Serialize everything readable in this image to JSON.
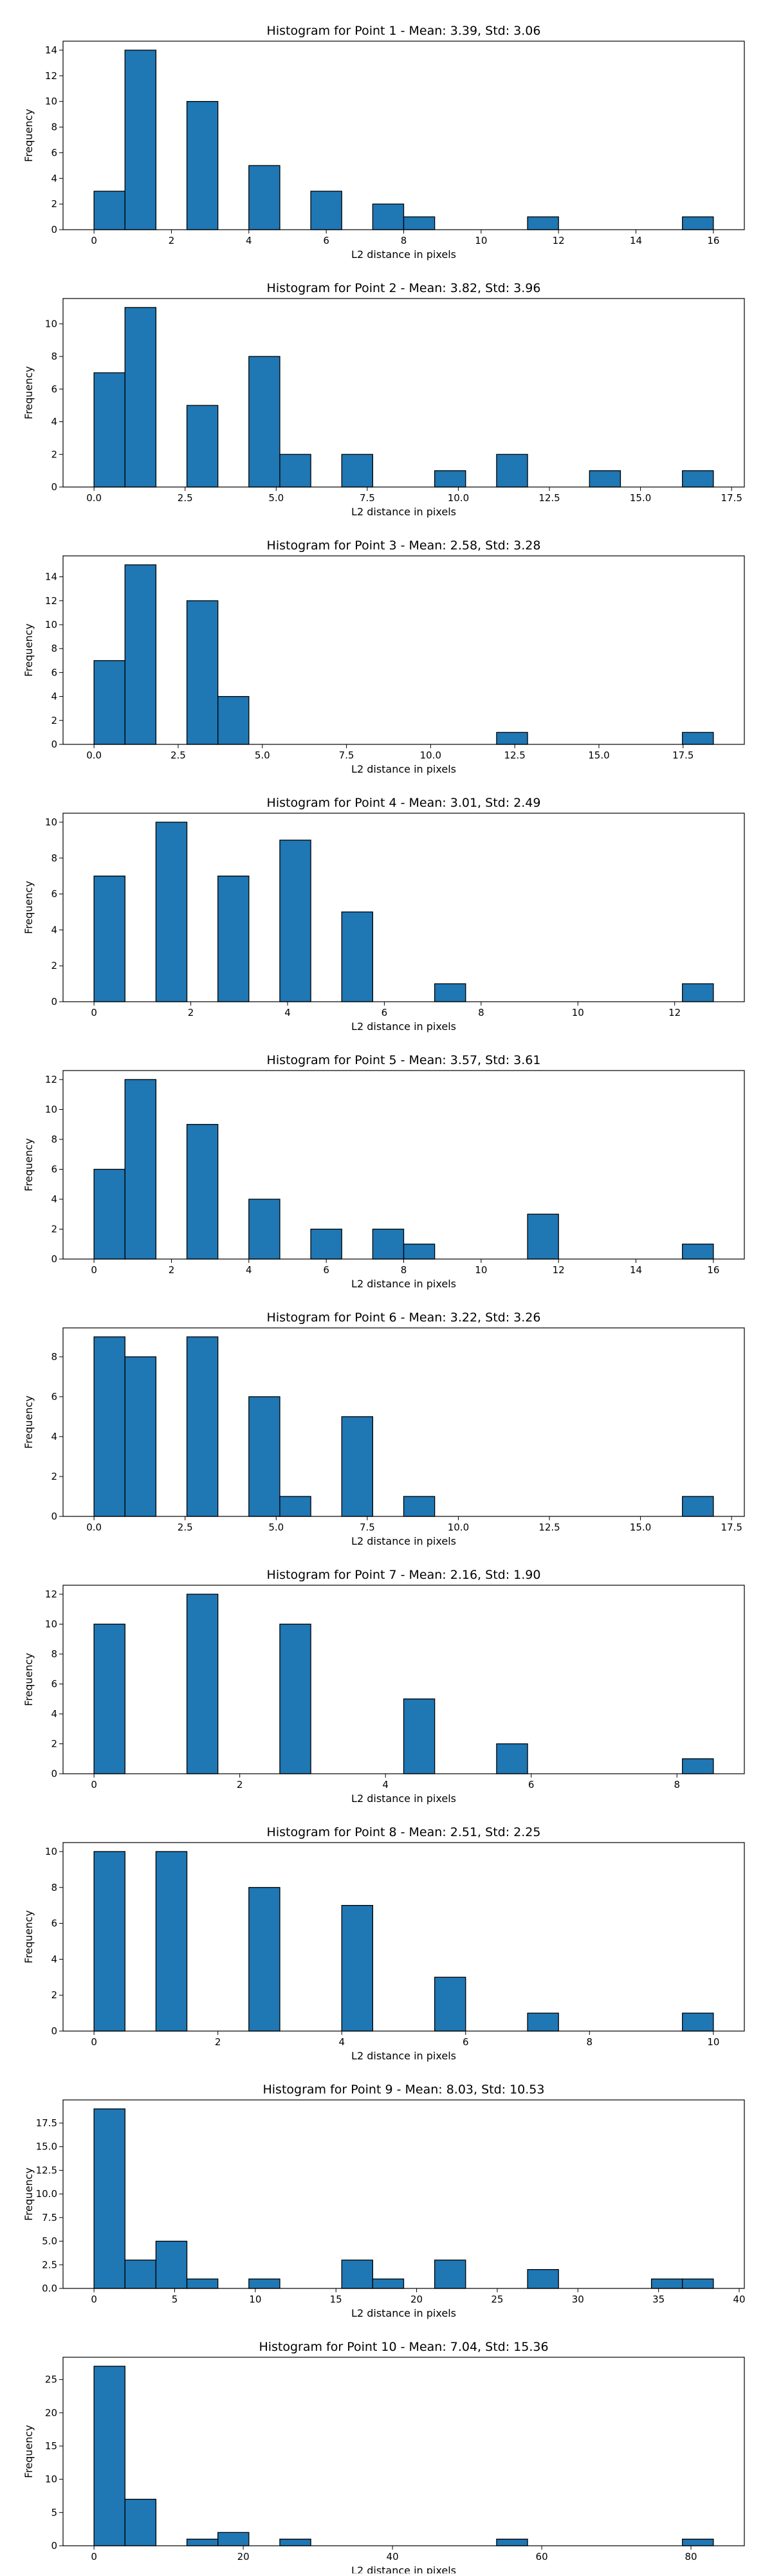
{
  "chart_data": [
    {
      "type": "histogram",
      "title": "Histogram for Point 1 - Mean: 3.39, Std: 3.06",
      "xlabel": "L2 distance in pixels",
      "ylabel": "Frequency",
      "color": "#1f77b4",
      "edgecolor": "#000000",
      "bins": [
        0,
        0.8,
        1.6,
        2.4,
        3.2,
        4,
        4.8,
        5.6,
        6.4,
        7.2,
        8,
        8.8,
        9.6,
        10.4,
        11.2,
        12,
        12.8,
        13.6,
        14.4,
        15.2,
        16
      ],
      "values": [
        3,
        14,
        0,
        10,
        0,
        5,
        0,
        3,
        0,
        2,
        1,
        0,
        0,
        0,
        1,
        0,
        0,
        0,
        0,
        1
      ],
      "xlim": [
        -0.8,
        16.8
      ],
      "xticks": [
        0,
        2,
        4,
        6,
        8,
        10,
        12,
        14,
        16
      ],
      "ylim": [
        0,
        14.7
      ],
      "yticks": [
        0,
        2,
        4,
        6,
        8,
        10,
        12,
        14
      ]
    },
    {
      "type": "histogram",
      "title": "Histogram for Point 2 - Mean: 3.82, Std: 3.96",
      "xlabel": "L2 distance in pixels",
      "ylabel": "Frequency",
      "color": "#1f77b4",
      "edgecolor": "#000000",
      "bins": [
        0,
        0.85,
        1.7,
        2.55,
        3.4,
        4.25,
        5.1,
        5.95,
        6.8,
        7.65,
        8.5,
        9.35,
        10.2,
        11.05,
        11.9,
        12.75,
        13.6,
        14.45,
        15.3,
        16.15,
        17
      ],
      "values": [
        7,
        11,
        0,
        5,
        0,
        8,
        2,
        0,
        2,
        0,
        0,
        1,
        0,
        2,
        0,
        0,
        1,
        0,
        0,
        1
      ],
      "xlim": [
        -0.85,
        17.85
      ],
      "xticks": [
        {
          "value": 0,
          "label": "0.0"
        },
        2.5,
        {
          "value": 5,
          "label": "5.0"
        },
        7.5,
        {
          "value": 10,
          "label": "10.0"
        },
        12.5,
        {
          "value": 15,
          "label": "15.0"
        },
        17.5
      ],
      "ylim": [
        0,
        11.55
      ],
      "yticks": [
        0,
        2,
        4,
        6,
        8,
        10
      ]
    },
    {
      "type": "histogram",
      "title": "Histogram for Point 3 - Mean: 2.58, Std: 3.28",
      "xlabel": "L2 distance in pixels",
      "ylabel": "Frequency",
      "color": "#1f77b4",
      "edgecolor": "#000000",
      "bins": [
        0,
        0.92,
        1.84,
        2.76,
        3.68,
        4.6,
        5.52,
        6.44,
        7.36,
        8.28,
        9.2,
        10.12,
        11.04,
        11.96,
        12.88,
        13.8,
        14.72,
        15.64,
        16.56,
        17.48,
        18.4
      ],
      "values": [
        7,
        15,
        0,
        12,
        4,
        0,
        0,
        0,
        0,
        0,
        0,
        0,
        0,
        1,
        0,
        0,
        0,
        0,
        0,
        1
      ],
      "xlim": [
        -0.92,
        19.32
      ],
      "xticks": [
        {
          "value": 0,
          "label": "0.0"
        },
        2.5,
        {
          "value": 5,
          "label": "5.0"
        },
        7.5,
        {
          "value": 10,
          "label": "10.0"
        },
        12.5,
        {
          "value": 15,
          "label": "15.0"
        },
        17.5
      ],
      "ylim": [
        0,
        15.75
      ],
      "yticks": [
        0,
        2,
        4,
        6,
        8,
        10,
        12,
        14
      ]
    },
    {
      "type": "histogram",
      "title": "Histogram for Point 4 - Mean: 3.01, Std: 2.49",
      "xlabel": "L2 distance in pixels",
      "ylabel": "Frequency",
      "color": "#1f77b4",
      "edgecolor": "#000000",
      "bins": [
        0,
        0.64,
        1.28,
        1.92,
        2.56,
        3.2,
        3.84,
        4.48,
        5.12,
        5.76,
        6.4,
        7.04,
        7.68,
        8.32,
        8.96,
        9.6,
        10.24,
        10.88,
        11.52,
        12.16,
        12.8
      ],
      "values": [
        7,
        0,
        10,
        0,
        7,
        0,
        9,
        0,
        5,
        0,
        0,
        1,
        0,
        0,
        0,
        0,
        0,
        0,
        0,
        1
      ],
      "xlim": [
        -0.64,
        13.44
      ],
      "xticks": [
        0,
        2,
        4,
        6,
        8,
        10,
        12
      ],
      "ylim": [
        0,
        10.5
      ],
      "yticks": [
        0,
        2,
        4,
        6,
        8,
        10
      ]
    },
    {
      "type": "histogram",
      "title": "Histogram for Point 5 - Mean: 3.57, Std: 3.61",
      "xlabel": "L2 distance in pixels",
      "ylabel": "Frequency",
      "color": "#1f77b4",
      "edgecolor": "#000000",
      "bins": [
        0,
        0.8,
        1.6,
        2.4,
        3.2,
        4,
        4.8,
        5.6,
        6.4,
        7.2,
        8,
        8.8,
        9.6,
        10.4,
        11.2,
        12,
        12.8,
        13.6,
        14.4,
        15.2,
        16
      ],
      "values": [
        6,
        12,
        0,
        9,
        0,
        4,
        0,
        2,
        0,
        2,
        1,
        0,
        0,
        0,
        3,
        0,
        0,
        0,
        0,
        1
      ],
      "xlim": [
        -0.8,
        16.8
      ],
      "xticks": [
        0,
        2,
        4,
        6,
        8,
        10,
        12,
        14,
        16
      ],
      "ylim": [
        0,
        12.6
      ],
      "yticks": [
        0,
        2,
        4,
        6,
        8,
        10,
        12
      ]
    },
    {
      "type": "histogram",
      "title": "Histogram for Point 6 - Mean: 3.22, Std: 3.26",
      "xlabel": "L2 distance in pixels",
      "ylabel": "Frequency",
      "color": "#1f77b4",
      "edgecolor": "#000000",
      "bins": [
        0,
        0.85,
        1.7,
        2.55,
        3.4,
        4.25,
        5.1,
        5.95,
        6.8,
        7.65,
        8.5,
        9.35,
        10.2,
        11.05,
        11.9,
        12.75,
        13.6,
        14.45,
        15.3,
        16.15,
        17
      ],
      "values": [
        9,
        8,
        0,
        9,
        0,
        6,
        1,
        0,
        5,
        0,
        1,
        0,
        0,
        0,
        0,
        0,
        0,
        0,
        0,
        1
      ],
      "xlim": [
        -0.85,
        17.85
      ],
      "xticks": [
        {
          "value": 0,
          "label": "0.0"
        },
        2.5,
        {
          "value": 5,
          "label": "5.0"
        },
        7.5,
        {
          "value": 10,
          "label": "10.0"
        },
        12.5,
        {
          "value": 15,
          "label": "15.0"
        },
        17.5
      ],
      "ylim": [
        0,
        9.45
      ],
      "yticks": [
        0,
        2,
        4,
        6,
        8
      ]
    },
    {
      "type": "histogram",
      "title": "Histogram for Point 7 - Mean: 2.16, Std: 1.90",
      "xlabel": "L2 distance in pixels",
      "ylabel": "Frequency",
      "color": "#1f77b4",
      "edgecolor": "#000000",
      "bins": [
        0,
        0.425,
        0.85,
        1.275,
        1.7,
        2.125,
        2.55,
        2.975,
        3.4,
        3.825,
        4.25,
        4.675,
        5.1,
        5.525,
        5.95,
        6.375,
        6.8,
        7.225,
        7.65,
        8.075,
        8.5
      ],
      "values": [
        10,
        0,
        0,
        12,
        0,
        0,
        10,
        0,
        0,
        0,
        5,
        0,
        0,
        2,
        0,
        0,
        0,
        0,
        0,
        1
      ],
      "xlim": [
        -0.425,
        8.925
      ],
      "xticks": [
        0,
        2,
        4,
        6,
        8
      ],
      "ylim": [
        0,
        12.6
      ],
      "yticks": [
        0,
        2,
        4,
        6,
        8,
        10,
        12
      ]
    },
    {
      "type": "histogram",
      "title": "Histogram for Point 8 - Mean: 2.51, Std: 2.25",
      "xlabel": "L2 distance in pixels",
      "ylabel": "Frequency",
      "color": "#1f77b4",
      "edgecolor": "#000000",
      "bins": [
        0,
        0.5,
        1,
        1.5,
        2,
        2.5,
        3,
        3.5,
        4,
        4.5,
        5,
        5.5,
        6,
        6.5,
        7,
        7.5,
        8,
        8.5,
        9,
        9.5,
        10
      ],
      "values": [
        10,
        0,
        10,
        0,
        0,
        8,
        0,
        0,
        7,
        0,
        0,
        3,
        0,
        0,
        1,
        0,
        0,
        0,
        0,
        1
      ],
      "xlim": [
        -0.5,
        10.5
      ],
      "xticks": [
        0,
        2,
        4,
        6,
        8,
        10
      ],
      "ylim": [
        0,
        10.5
      ],
      "yticks": [
        0,
        2,
        4,
        6,
        8,
        10
      ]
    },
    {
      "type": "histogram",
      "title": "Histogram for Point 9 - Mean: 8.03, Std: 10.53",
      "xlabel": "L2 distance in pixels",
      "ylabel": "Frequency",
      "color": "#1f77b4",
      "edgecolor": "#000000",
      "bins": [
        0,
        1.92,
        3.84,
        5.76,
        7.68,
        9.6,
        11.52,
        13.44,
        15.36,
        17.28,
        19.2,
        21.12,
        23.04,
        24.96,
        26.88,
        28.8,
        30.72,
        32.64,
        34.56,
        36.48,
        38.4
      ],
      "values": [
        19,
        3,
        5,
        1,
        0,
        1,
        0,
        0,
        3,
        1,
        0,
        3,
        0,
        0,
        2,
        0,
        0,
        0,
        1,
        1
      ],
      "xlim": [
        -1.92,
        40.32
      ],
      "xticks": [
        0,
        5,
        10,
        15,
        20,
        25,
        30,
        35,
        40
      ],
      "ylim": [
        0,
        19.95
      ],
      "yticks": [
        {
          "value": 0,
          "label": "0.0"
        },
        2.5,
        {
          "value": 5,
          "label": "5.0"
        },
        7.5,
        {
          "value": 10,
          "label": "10.0"
        },
        12.5,
        {
          "value": 15,
          "label": "15.0"
        },
        17.5
      ]
    },
    {
      "type": "histogram",
      "title": "Histogram for Point 10 - Mean: 7.04, Std: 15.36",
      "xlabel": "L2 distance in pixels",
      "ylabel": "Frequency",
      "color": "#1f77b4",
      "edgecolor": "#000000",
      "bins": [
        0,
        4.15,
        8.3,
        12.45,
        16.6,
        20.75,
        24.9,
        29.05,
        33.2,
        37.35,
        41.5,
        45.65,
        49.8,
        53.95,
        58.1,
        62.25,
        66.4,
        70.55,
        74.7,
        78.85,
        83
      ],
      "values": [
        27,
        7,
        0,
        1,
        2,
        0,
        1,
        0,
        0,
        0,
        0,
        0,
        0,
        1,
        0,
        0,
        0,
        0,
        0,
        1
      ],
      "xlim": [
        -4.15,
        87.15
      ],
      "xticks": [
        0,
        20,
        40,
        60,
        80
      ],
      "ylim": [
        0,
        28.35
      ],
      "yticks": [
        0,
        5,
        10,
        15,
        20,
        25
      ]
    }
  ]
}
